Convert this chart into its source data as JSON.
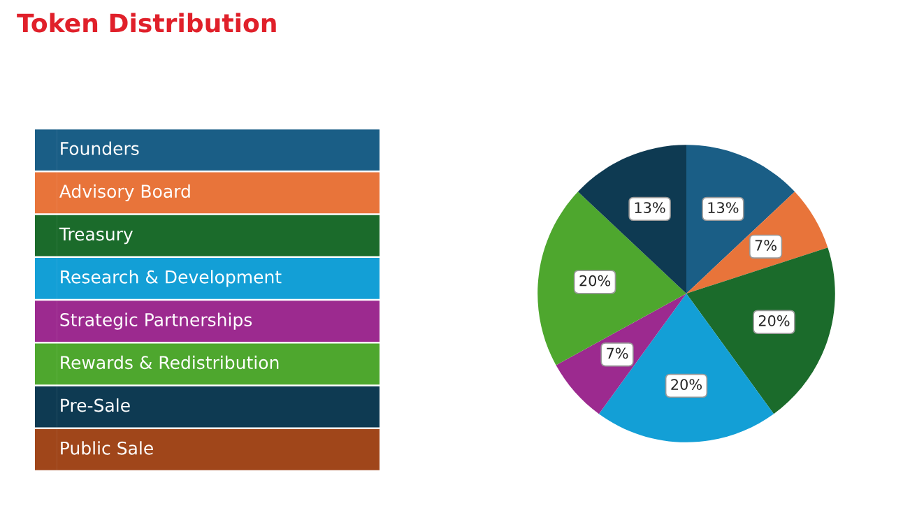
{
  "chart_data": {
    "type": "pie",
    "title": "Token Distribution",
    "categories": [
      "Founders",
      "Advisory Board",
      "Treasury",
      "Research & Development",
      "Strategic Partnerships",
      "Rewards & Redistribution",
      "Pre-Sale",
      "Public Sale"
    ],
    "values": [
      13,
      7,
      20,
      20,
      7,
      20,
      13,
      0
    ],
    "value_labels": [
      "13%",
      "7%",
      "20%",
      "20%",
      "7%",
      "20%",
      "13%",
      null
    ],
    "colors": [
      "#1a5e86",
      "#e8743a",
      "#1b6b2b",
      "#139fd6",
      "#9c2a8f",
      "#4ea72e",
      "#0e3a52",
      "#a0461a"
    ],
    "legend": "left"
  }
}
